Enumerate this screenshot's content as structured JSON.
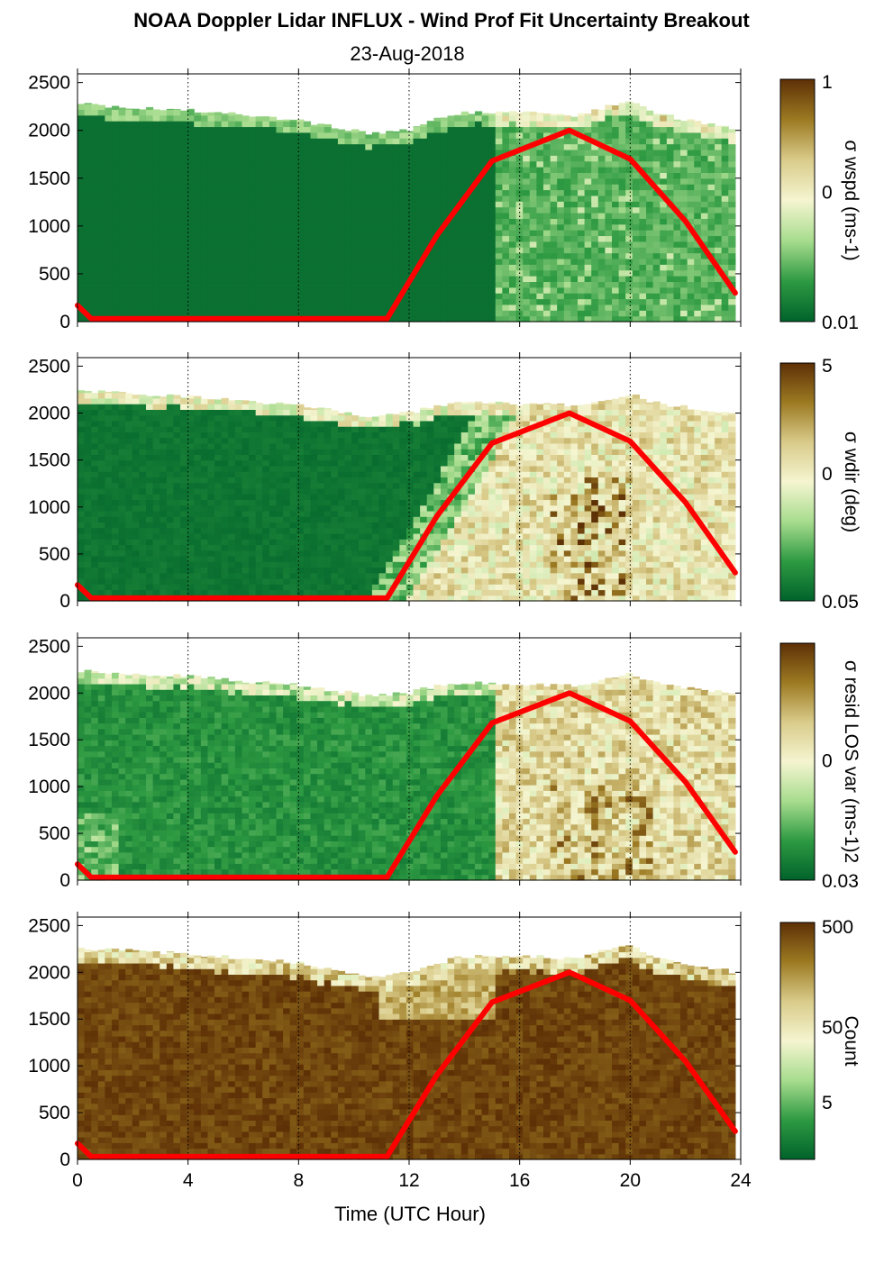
{
  "title": "NOAA Doppler Lidar INFLUX - Wind Prof Fit Uncertainty Breakout",
  "subtitle": "23-Aug-2018",
  "xlabel": "Time (UTC Hour)",
  "colormap": [
    "#00632b",
    "#2e9a42",
    "#a7dc8e",
    "#f5f5d0",
    "#d9cb8a",
    "#9c7a22",
    "#5e3006"
  ],
  "sun_line_color": "#ff0000",
  "chart_data": [
    {
      "type": "heatmap",
      "ylim": [
        0,
        2500
      ],
      "xlim": [
        0,
        24
      ],
      "xticks": [
        "0",
        "4",
        "8",
        "12",
        "16",
        "20",
        "24"
      ],
      "yticks": [
        "0",
        "500",
        "1000",
        "1500",
        "2000",
        "2500"
      ],
      "colorbar": {
        "label": "σ wspd (ms-1)",
        "ticks": [
          "1",
          "0",
          "0.01"
        ],
        "scale": "log"
      },
      "top_height_m": [
        [
          0.2,
          2270
        ],
        [
          2,
          2230
        ],
        [
          4,
          2210
        ],
        [
          6,
          2160
        ],
        [
          8,
          2110
        ],
        [
          9.5,
          2020
        ],
        [
          10.5,
          1970
        ],
        [
          12,
          2000
        ],
        [
          13,
          2120
        ],
        [
          14,
          2180
        ],
        [
          16,
          2190
        ],
        [
          18,
          2150
        ],
        [
          19.2,
          2250
        ],
        [
          20,
          2300
        ],
        [
          21,
          2170
        ],
        [
          23.8,
          2010
        ]
      ],
      "sun_curve": [
        [
          0,
          170
        ],
        [
          0.5,
          30
        ],
        [
          11.2,
          30
        ],
        [
          13,
          900
        ],
        [
          15,
          1680
        ],
        [
          17.8,
          2000
        ],
        [
          20,
          1700
        ],
        [
          22,
          1050
        ],
        [
          23.8,
          300
        ]
      ]
    },
    {
      "type": "heatmap",
      "ylim": [
        0,
        2500
      ],
      "xlim": [
        0,
        24
      ],
      "xticks": [
        "0",
        "4",
        "8",
        "12",
        "16",
        "20",
        "24"
      ],
      "yticks": [
        "0",
        "500",
        "1000",
        "1500",
        "2000",
        "2500"
      ],
      "colorbar": {
        "label": "σ wdir (deg)",
        "ticks": [
          "5",
          "0",
          "0.05"
        ],
        "scale": "log"
      },
      "top_height_m": [
        [
          0.2,
          2240
        ],
        [
          2,
          2200
        ],
        [
          4,
          2180
        ],
        [
          6,
          2130
        ],
        [
          8,
          2080
        ],
        [
          9.5,
          2020
        ],
        [
          10.5,
          1970
        ],
        [
          12,
          2000
        ],
        [
          13,
          2080
        ],
        [
          14,
          2120
        ],
        [
          16,
          2100
        ],
        [
          18,
          2080
        ],
        [
          19.2,
          2150
        ],
        [
          20,
          2200
        ],
        [
          21,
          2100
        ],
        [
          23.8,
          2000
        ]
      ],
      "sun_curve": [
        [
          0,
          170
        ],
        [
          0.5,
          30
        ],
        [
          11.2,
          30
        ],
        [
          13,
          900
        ],
        [
          15,
          1680
        ],
        [
          17.8,
          2000
        ],
        [
          20,
          1700
        ],
        [
          22,
          1050
        ],
        [
          23.8,
          300
        ]
      ]
    },
    {
      "type": "heatmap",
      "ylim": [
        0,
        2500
      ],
      "xlim": [
        0,
        24
      ],
      "xticks": [
        "0",
        "4",
        "8",
        "12",
        "16",
        "20",
        "24"
      ],
      "yticks": [
        "0",
        "500",
        "1000",
        "1500",
        "2000",
        "2500"
      ],
      "colorbar": {
        "label": "σ resid LOS var (ms-1)2",
        "ticks": [
          "0",
          "0.03"
        ],
        "scale": "log"
      },
      "top_height_m": [
        [
          0.2,
          2240
        ],
        [
          2,
          2200
        ],
        [
          4,
          2180
        ],
        [
          6,
          2130
        ],
        [
          8,
          2080
        ],
        [
          9.5,
          2020
        ],
        [
          10.5,
          1970
        ],
        [
          12,
          2000
        ],
        [
          13,
          2080
        ],
        [
          14,
          2120
        ],
        [
          16,
          2100
        ],
        [
          18,
          2080
        ],
        [
          19.2,
          2150
        ],
        [
          20,
          2200
        ],
        [
          21,
          2100
        ],
        [
          23.8,
          1990
        ]
      ],
      "sun_curve": [
        [
          0,
          170
        ],
        [
          0.5,
          30
        ],
        [
          11.2,
          30
        ],
        [
          13,
          900
        ],
        [
          15,
          1680
        ],
        [
          17.8,
          2000
        ],
        [
          20,
          1700
        ],
        [
          22,
          1050
        ],
        [
          23.8,
          300
        ]
      ]
    },
    {
      "type": "heatmap",
      "ylim": [
        0,
        2500
      ],
      "xlim": [
        0,
        24
      ],
      "xticks": [
        "0",
        "4",
        "8",
        "12",
        "16",
        "20",
        "24"
      ],
      "yticks": [
        "0",
        "500",
        "1000",
        "1500",
        "2000",
        "2500"
      ],
      "colorbar": {
        "label": "Count",
        "ticks": [
          "500",
          "50",
          "5"
        ],
        "scale": "log"
      },
      "top_height_m": [
        [
          0.2,
          2250
        ],
        [
          2,
          2230
        ],
        [
          4,
          2200
        ],
        [
          6,
          2150
        ],
        [
          8,
          2100
        ],
        [
          9.5,
          2000
        ],
        [
          10.5,
          1950
        ],
        [
          12,
          2000
        ],
        [
          13,
          2100
        ],
        [
          14,
          2170
        ],
        [
          16,
          2180
        ],
        [
          18,
          2150
        ],
        [
          19.2,
          2250
        ],
        [
          20,
          2280
        ],
        [
          21,
          2150
        ],
        [
          23.8,
          2000
        ]
      ],
      "sun_curve": [
        [
          0,
          170
        ],
        [
          0.5,
          30
        ],
        [
          11.2,
          30
        ],
        [
          13,
          900
        ],
        [
          15,
          1680
        ],
        [
          17.8,
          2000
        ],
        [
          20,
          1700
        ],
        [
          22,
          1050
        ],
        [
          23.8,
          300
        ]
      ]
    }
  ]
}
